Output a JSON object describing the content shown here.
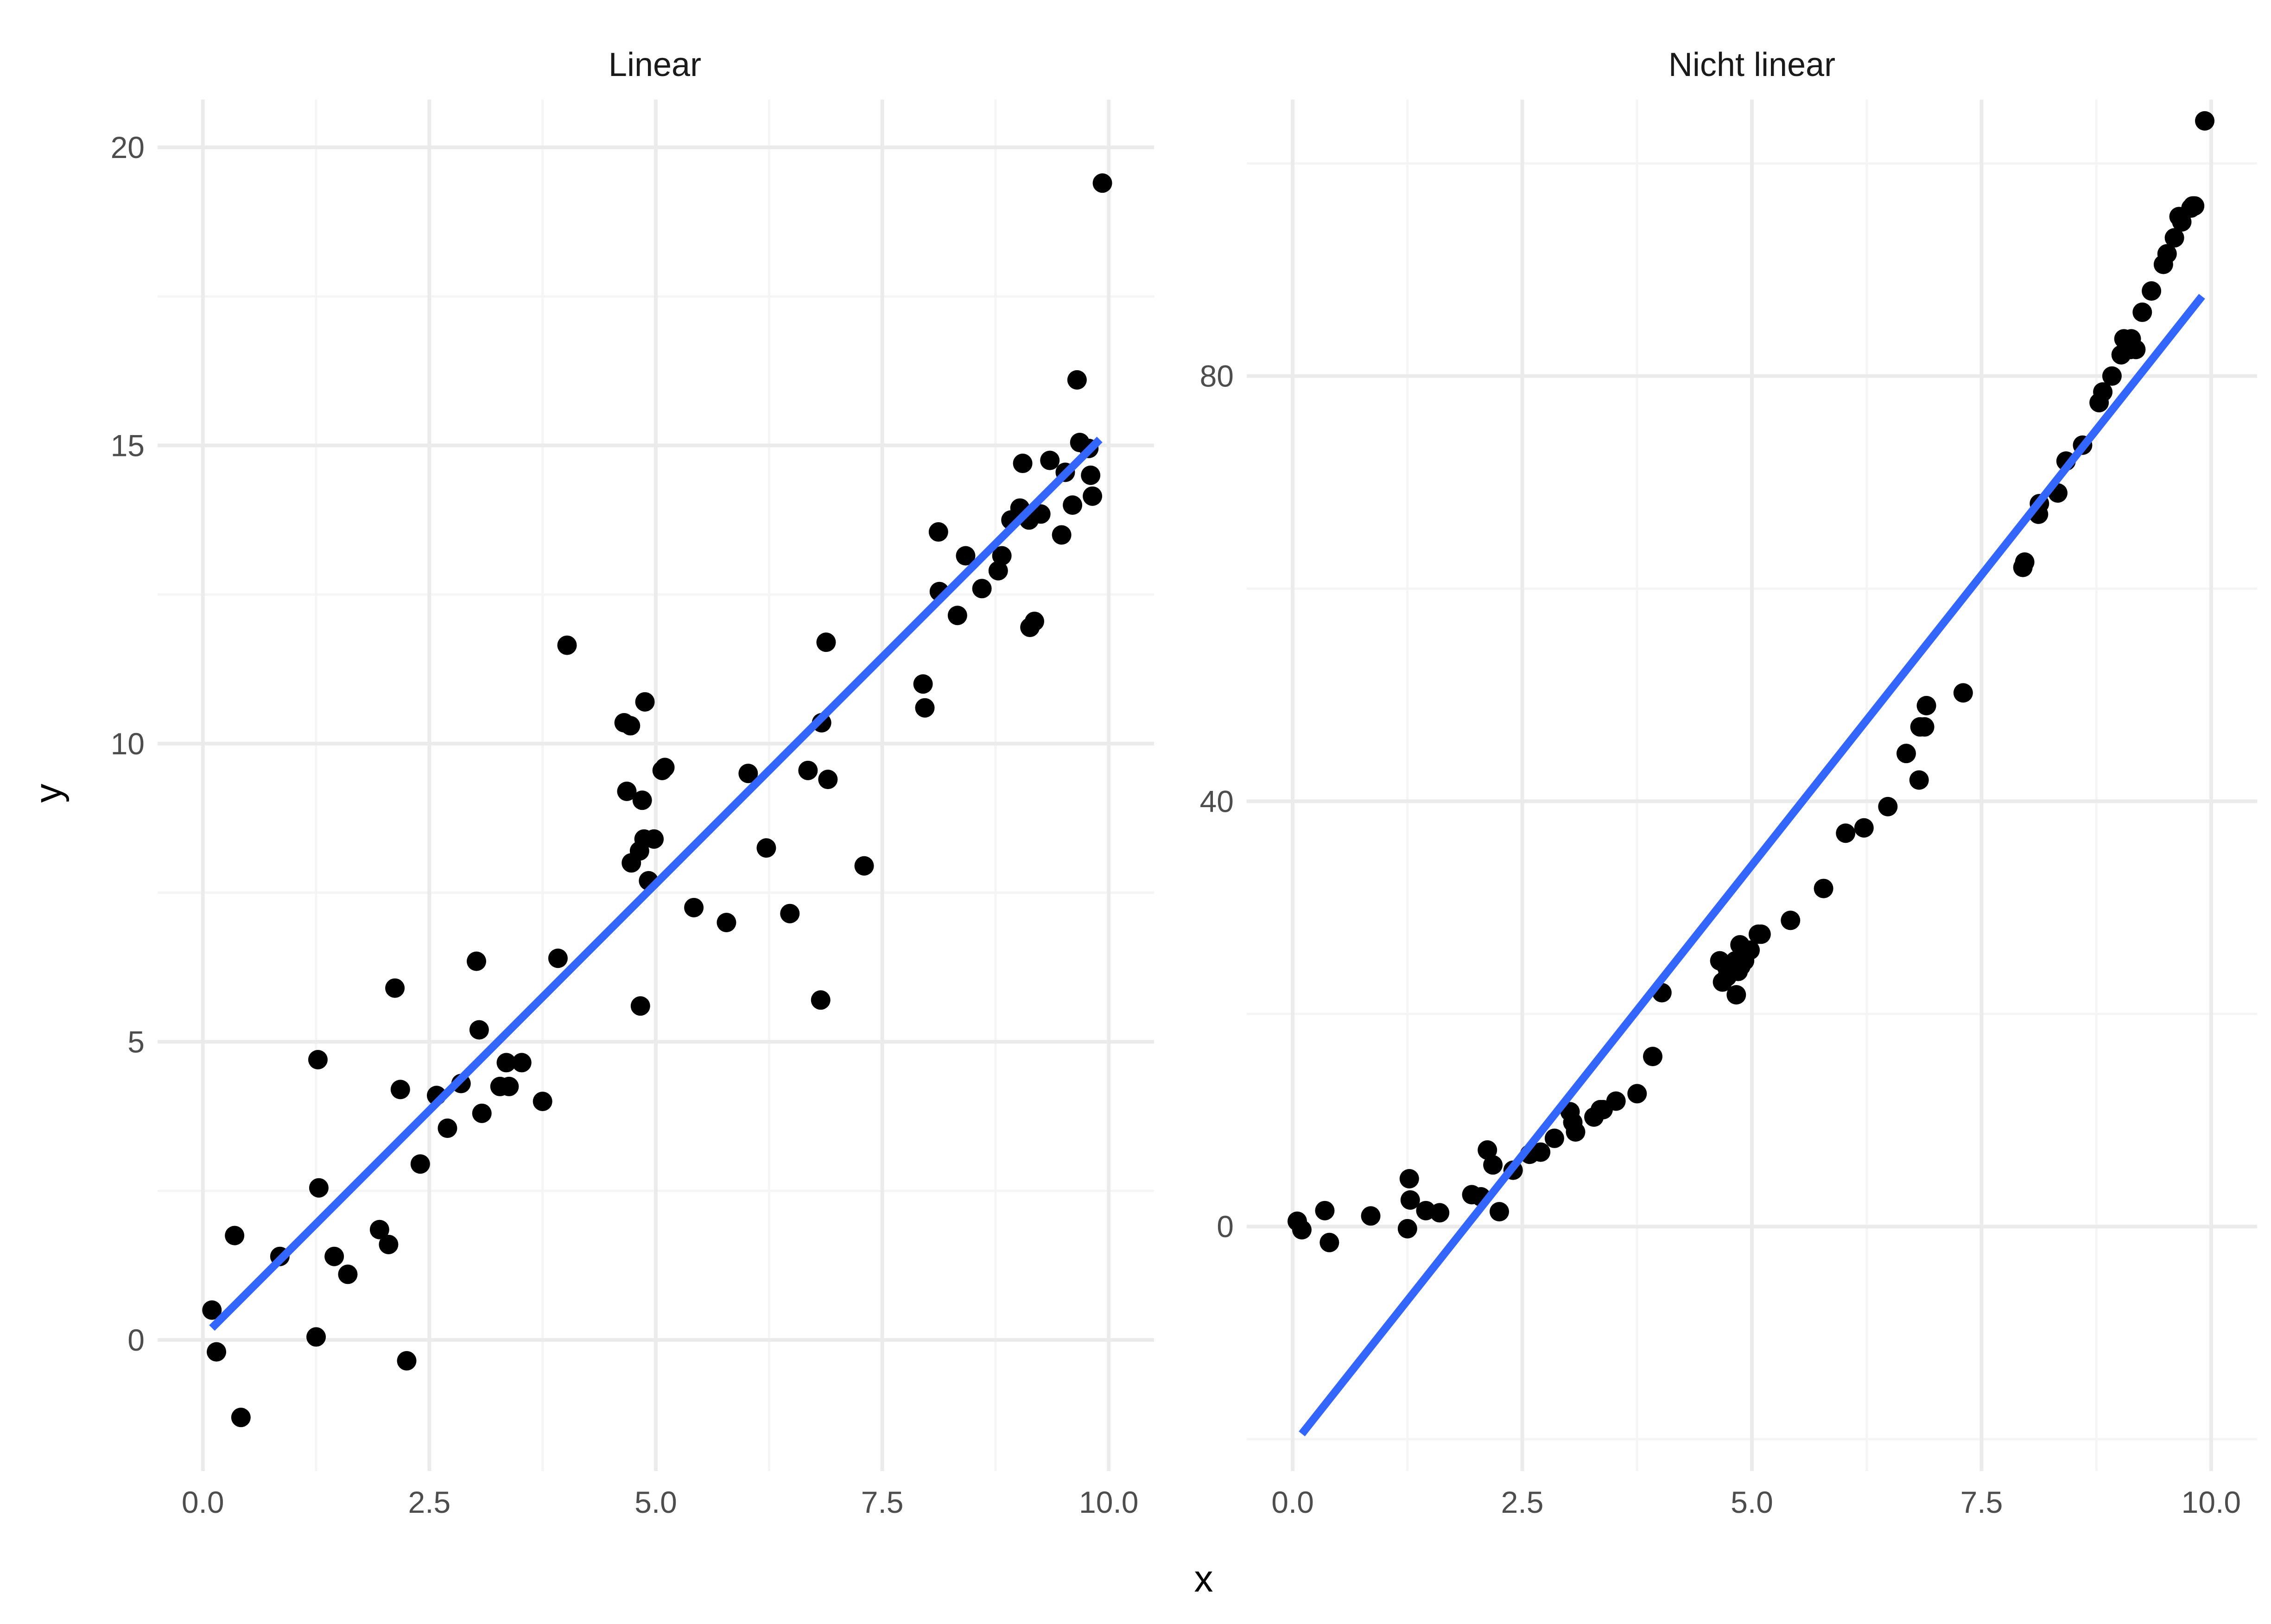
{
  "xlabel": "x",
  "ylabel": "y",
  "colors": {
    "point": "#000000",
    "fit": "#3366ff",
    "grid_major": "#ebebeb",
    "grid_minor": "#f5f5f5"
  },
  "chart_data": [
    {
      "type": "scatter",
      "title": "Linear",
      "xlim": [
        -0.5,
        10.5
      ],
      "ylim": [
        -2.2,
        20.8
      ],
      "x_ticks": [
        0.0,
        2.5,
        5.0,
        7.5,
        10.0
      ],
      "x_tick_labels": [
        "0.0",
        "2.5",
        "5.0",
        "7.5",
        "10.0"
      ],
      "y_ticks": [
        0,
        5,
        10,
        15,
        20
      ],
      "y_tick_labels": [
        "0",
        "5",
        "10",
        "15",
        "20"
      ],
      "grid": true,
      "fit_line": {
        "x": [
          0.1,
          9.9
        ],
        "y": [
          0.2,
          15.1
        ]
      },
      "points": {
        "x": [
          0.1,
          0.15,
          0.35,
          0.42,
          0.85,
          1.25,
          1.27,
          1.28,
          1.45,
          1.6,
          1.95,
          2.05,
          2.12,
          2.18,
          2.25,
          2.4,
          2.58,
          2.7,
          2.85,
          3.02,
          3.05,
          3.08,
          3.28,
          3.35,
          3.38,
          3.52,
          3.75,
          3.92,
          4.02,
          4.65,
          4.68,
          4.72,
          4.73,
          4.82,
          4.83,
          4.85,
          4.87,
          4.88,
          4.92,
          4.98,
          5.07,
          5.1,
          5.42,
          5.78,
          6.02,
          6.22,
          6.48,
          6.68,
          6.82,
          6.83,
          6.88,
          6.9,
          7.3,
          7.95,
          7.97,
          8.12,
          8.13,
          8.33,
          8.42,
          8.6,
          8.78,
          8.82,
          8.92,
          9.02,
          9.05,
          9.12,
          9.13,
          9.18,
          9.25,
          9.35,
          9.48,
          9.52,
          9.6,
          9.65,
          9.68,
          9.78,
          9.8,
          9.82,
          9.93
        ],
        "y": [
          0.5,
          -0.2,
          1.75,
          -1.3,
          1.4,
          0.05,
          4.7,
          2.55,
          1.4,
          1.1,
          1.85,
          1.6,
          5.9,
          4.2,
          -0.35,
          2.95,
          4.1,
          3.55,
          4.3,
          6.35,
          5.2,
          3.8,
          4.25,
          4.65,
          4.25,
          4.65,
          4.0,
          6.4,
          11.65,
          10.35,
          9.2,
          10.3,
          8.0,
          8.2,
          5.6,
          9.05,
          8.4,
          10.7,
          7.7,
          8.4,
          9.55,
          9.6,
          7.25,
          7.0,
          9.5,
          8.25,
          7.15,
          9.55,
          5.7,
          10.35,
          11.7,
          9.4,
          7.95,
          11.0,
          10.6,
          13.55,
          12.55,
          12.15,
          13.15,
          12.6,
          12.9,
          13.15,
          13.75,
          13.95,
          14.7,
          13.75,
          11.95,
          12.05,
          13.85,
          14.75,
          13.5,
          14.55,
          14.0,
          16.1,
          15.05,
          14.95,
          14.5,
          14.15,
          19.4
        ]
      }
    },
    {
      "type": "scatter",
      "title": "Nicht linear",
      "xlim": [
        -0.5,
        10.5
      ],
      "ylim": [
        -23,
        106
      ],
      "x_ticks": [
        0.0,
        2.5,
        5.0,
        7.5,
        10.0
      ],
      "x_tick_labels": [
        "0.0",
        "2.5",
        "5.0",
        "7.5",
        "10.0"
      ],
      "y_ticks": [
        0,
        40,
        80
      ],
      "y_tick_labels": [
        "0",
        "40",
        "80"
      ],
      "grid": true,
      "fit_line": {
        "x": [
          0.1,
          9.9
        ],
        "y": [
          -19.5,
          87.5
        ]
      },
      "points": {
        "x": [
          0.05,
          0.1,
          0.35,
          0.4,
          0.85,
          1.25,
          1.27,
          1.28,
          1.45,
          1.6,
          1.95,
          2.05,
          2.12,
          2.18,
          2.25,
          2.4,
          2.58,
          2.7,
          2.85,
          3.02,
          3.05,
          3.08,
          3.28,
          3.35,
          3.38,
          3.52,
          3.75,
          3.92,
          4.02,
          4.65,
          4.68,
          4.72,
          4.73,
          4.82,
          4.83,
          4.85,
          4.87,
          4.88,
          4.92,
          4.98,
          5.07,
          5.1,
          5.42,
          5.78,
          6.02,
          6.22,
          6.48,
          6.68,
          6.82,
          6.83,
          6.88,
          6.9,
          7.3,
          7.95,
          7.97,
          8.12,
          8.13,
          8.33,
          8.42,
          8.6,
          8.78,
          8.82,
          8.92,
          9.02,
          9.05,
          9.12,
          9.13,
          9.18,
          9.25,
          9.35,
          9.48,
          9.52,
          9.6,
          9.65,
          9.68,
          9.78,
          9.8,
          9.82,
          9.93
        ],
        "y": [
          0.5,
          -0.3,
          1.5,
          -1.5,
          1.0,
          -0.2,
          4.5,
          2.5,
          1.5,
          1.3,
          3.0,
          2.8,
          7.2,
          5.8,
          1.4,
          5.3,
          6.8,
          7.0,
          8.3,
          10.8,
          9.8,
          8.9,
          10.3,
          11.0,
          11.0,
          11.8,
          12.5,
          16.0,
          22.0,
          25.0,
          23.0,
          24.5,
          23.5,
          25.0,
          21.8,
          24.0,
          26.5,
          24.5,
          25.0,
          26.0,
          27.5,
          27.5,
          28.8,
          31.8,
          37.0,
          37.5,
          39.5,
          44.5,
          42.0,
          47.0,
          47.0,
          49.0,
          50.2,
          62.0,
          62.5,
          67.0,
          68.0,
          69.0,
          72.0,
          73.5,
          77.5,
          78.5,
          80.0,
          82.0,
          83.5,
          82.5,
          83.5,
          82.5,
          86.0,
          88.0,
          90.5,
          91.5,
          93.0,
          95.0,
          94.5,
          95.8,
          96.0,
          96.0,
          104.0
        ]
      }
    }
  ]
}
